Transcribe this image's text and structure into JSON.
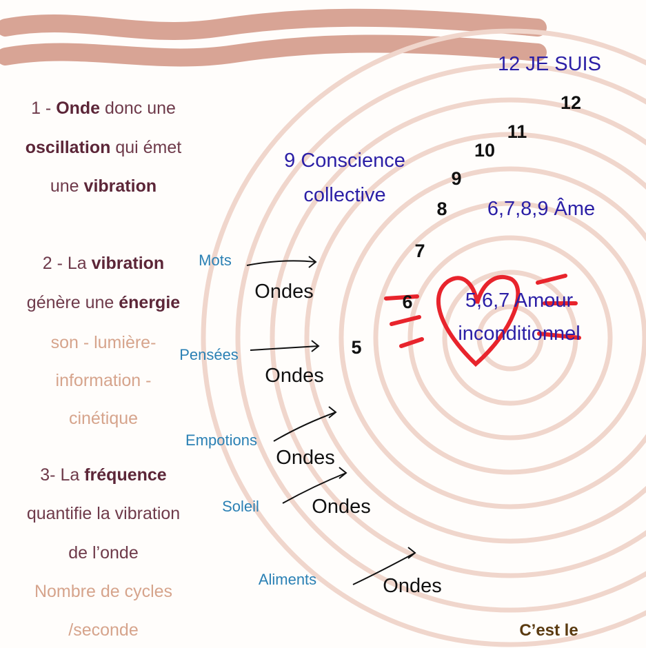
{
  "steps": [
    [
      [
        {
          "text": "1 - "
        },
        {
          "text": "Onde",
          "bold": true
        },
        {
          "text": " donc une"
        }
      ],
      [
        {
          "text": "oscillation",
          "bold": true
        },
        {
          "text": " qui émet"
        }
      ],
      [
        {
          "text": "une "
        },
        {
          "text": "vibration",
          "bold": true
        }
      ]
    ],
    [
      [
        {
          "text": "2 - La "
        },
        {
          "text": "vibration",
          "bold": true
        }
      ],
      [
        {
          "text": "génère une "
        },
        {
          "text": "énergie",
          "bold": true
        }
      ],
      [
        {
          "text": "son - lumière-",
          "light": true
        }
      ],
      [
        {
          "text": "information -",
          "light": true
        }
      ],
      [
        {
          "text": "cinétique",
          "light": true
        }
      ]
    ],
    [
      [
        {
          "text": "3- La "
        },
        {
          "text": "fréquence",
          "bold": true
        }
      ],
      [
        {
          "text": "quantifie la vibration"
        }
      ],
      [
        {
          "text": "de l’onde"
        }
      ],
      [
        {
          "text": "Nombre de cycles",
          "light": true
        }
      ],
      [
        {
          "text": "/seconde",
          "light": true
        }
      ]
    ]
  ],
  "levels": {
    "top": "12 JE SUIS",
    "collective": [
      "9 Conscience",
      "collective"
    ],
    "soul": "6,7,8,9 Âme",
    "love": [
      "5,6,7 Amour",
      "inconditionnel"
    ]
  },
  "numbers": [
    "12",
    "11",
    "10",
    "9",
    "8",
    "7",
    "6",
    "5"
  ],
  "sources": [
    {
      "label": "Mots",
      "wave": "Ondes"
    },
    {
      "label": "Pensées",
      "wave": "Ondes"
    },
    {
      "label": "Empotions",
      "wave": "Ondes"
    },
    {
      "label": "Soleil",
      "wave": "Ondes"
    },
    {
      "label": "Aliments",
      "wave": "Ondes"
    }
  ],
  "footer": "C’est le"
}
